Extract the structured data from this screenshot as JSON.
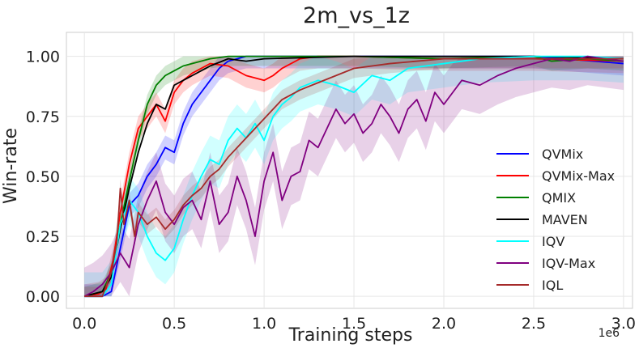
{
  "chart_data": {
    "type": "line",
    "title": "2m_vs_1z",
    "xlabel": "Training steps",
    "ylabel": "Win-rate",
    "x_offset_label": "1e6",
    "xlim": [
      -0.1,
      3.05
    ],
    "ylim": [
      -0.05,
      1.1
    ],
    "xticks": [
      0.0,
      0.5,
      1.0,
      1.5,
      2.0,
      2.5,
      3.0
    ],
    "xtick_labels": [
      "0.0",
      "0.5",
      "1.0",
      "1.5",
      "2.0",
      "2.5",
      "3.0"
    ],
    "yticks": [
      0.0,
      0.25,
      0.5,
      0.75,
      1.0
    ],
    "ytick_labels": [
      "0.00",
      "0.25",
      "0.50",
      "0.75",
      "1.00"
    ],
    "grid": true,
    "legend_position": "center-right",
    "series": [
      {
        "name": "QVMix",
        "color": "#0000ff",
        "band": 0.05,
        "x": [
          0.0,
          0.1,
          0.15,
          0.2,
          0.25,
          0.3,
          0.35,
          0.4,
          0.45,
          0.5,
          0.55,
          0.6,
          0.65,
          0.7,
          0.75,
          0.8,
          0.9,
          1.0,
          1.2,
          1.5,
          2.0,
          2.5,
          3.0
        ],
        "y": [
          0.0,
          0.0,
          0.02,
          0.2,
          0.38,
          0.42,
          0.5,
          0.55,
          0.62,
          0.6,
          0.72,
          0.8,
          0.85,
          0.9,
          0.95,
          0.98,
          1.0,
          1.0,
          1.0,
          1.0,
          1.0,
          1.0,
          0.97
        ]
      },
      {
        "name": "QVMix-Max",
        "color": "#ff0000",
        "band": 0.05,
        "x": [
          0.0,
          0.08,
          0.12,
          0.16,
          0.2,
          0.25,
          0.3,
          0.35,
          0.4,
          0.45,
          0.5,
          0.55,
          0.6,
          0.7,
          0.8,
          0.9,
          1.0,
          1.05,
          1.1,
          1.2,
          1.3,
          1.5,
          2.0,
          2.5,
          3.0
        ],
        "y": [
          0.0,
          0.01,
          0.03,
          0.15,
          0.35,
          0.55,
          0.7,
          0.75,
          0.8,
          0.73,
          0.85,
          0.9,
          0.93,
          0.97,
          0.96,
          0.92,
          0.9,
          0.92,
          0.95,
          0.99,
          1.0,
          1.0,
          0.99,
          0.99,
          0.98
        ]
      },
      {
        "name": "QMIX",
        "color": "#008000",
        "band": 0.04,
        "x": [
          0.0,
          0.1,
          0.15,
          0.2,
          0.25,
          0.3,
          0.35,
          0.4,
          0.45,
          0.5,
          0.55,
          0.6,
          0.7,
          0.8,
          1.0,
          1.5,
          2.0,
          2.5,
          2.6,
          2.8,
          3.0
        ],
        "y": [
          0.0,
          0.02,
          0.1,
          0.3,
          0.48,
          0.65,
          0.8,
          0.88,
          0.92,
          0.94,
          0.96,
          0.97,
          0.99,
          1.0,
          1.0,
          1.0,
          0.99,
          1.0,
          0.98,
          0.99,
          0.98
        ]
      },
      {
        "name": "MAVEN",
        "color": "#000000",
        "band": 0.0,
        "x": [
          0.0,
          0.1,
          0.15,
          0.2,
          0.25,
          0.3,
          0.35,
          0.4,
          0.45,
          0.5,
          0.55,
          0.6,
          0.7,
          0.8,
          0.9,
          1.0,
          1.5,
          2.0,
          2.5,
          3.0
        ],
        "y": [
          0.0,
          0.02,
          0.08,
          0.28,
          0.45,
          0.6,
          0.72,
          0.8,
          0.78,
          0.88,
          0.9,
          0.92,
          0.96,
          0.99,
          0.98,
          0.99,
          1.0,
          1.0,
          1.0,
          0.99
        ]
      },
      {
        "name": "IQV",
        "color": "#00ffff",
        "band": 0.1,
        "x": [
          0.0,
          0.1,
          0.15,
          0.2,
          0.25,
          0.3,
          0.35,
          0.4,
          0.45,
          0.5,
          0.55,
          0.6,
          0.65,
          0.7,
          0.75,
          0.8,
          0.85,
          0.9,
          0.95,
          1.0,
          1.05,
          1.1,
          1.15,
          1.2,
          1.3,
          1.4,
          1.5,
          1.6,
          1.7,
          1.8,
          2.0,
          2.2,
          2.5,
          2.8,
          3.0
        ],
        "y": [
          0.0,
          0.0,
          0.05,
          0.3,
          0.4,
          0.35,
          0.25,
          0.18,
          0.15,
          0.2,
          0.32,
          0.42,
          0.5,
          0.57,
          0.55,
          0.65,
          0.7,
          0.66,
          0.72,
          0.65,
          0.75,
          0.8,
          0.83,
          0.87,
          0.9,
          0.88,
          0.85,
          0.92,
          0.9,
          0.95,
          0.97,
          0.99,
          1.0,
          1.0,
          0.99
        ]
      },
      {
        "name": "IQV-Max",
        "color": "#800080",
        "band": 0.12,
        "x": [
          0.0,
          0.05,
          0.1,
          0.15,
          0.2,
          0.25,
          0.3,
          0.35,
          0.4,
          0.45,
          0.5,
          0.55,
          0.6,
          0.65,
          0.7,
          0.75,
          0.8,
          0.85,
          0.9,
          0.95,
          1.0,
          1.05,
          1.1,
          1.15,
          1.2,
          1.25,
          1.3,
          1.35,
          1.4,
          1.45,
          1.5,
          1.55,
          1.6,
          1.65,
          1.7,
          1.75,
          1.8,
          1.85,
          1.9,
          1.95,
          2.0,
          2.05,
          2.1,
          2.2,
          2.3,
          2.4,
          2.5,
          2.6,
          2.7,
          2.8,
          2.9,
          3.0
        ],
        "y": [
          0.0,
          0.02,
          0.05,
          0.1,
          0.18,
          0.12,
          0.3,
          0.4,
          0.48,
          0.35,
          0.3,
          0.37,
          0.4,
          0.32,
          0.48,
          0.3,
          0.35,
          0.5,
          0.4,
          0.25,
          0.48,
          0.6,
          0.4,
          0.5,
          0.52,
          0.65,
          0.62,
          0.7,
          0.78,
          0.72,
          0.76,
          0.68,
          0.72,
          0.8,
          0.75,
          0.68,
          0.78,
          0.82,
          0.73,
          0.85,
          0.8,
          0.85,
          0.9,
          0.88,
          0.92,
          0.95,
          0.97,
          0.99,
          0.98,
          1.0,
          0.99,
          0.98
        ]
      },
      {
        "name": "IQL",
        "color": "#a52a2a",
        "band": 0.04,
        "x": [
          0.0,
          0.1,
          0.15,
          0.18,
          0.2,
          0.22,
          0.25,
          0.28,
          0.3,
          0.35,
          0.4,
          0.45,
          0.5,
          0.55,
          0.6,
          0.65,
          0.7,
          0.75,
          0.8,
          0.85,
          0.9,
          0.95,
          1.0,
          1.1,
          1.2,
          1.3,
          1.4,
          1.5,
          1.7,
          2.0,
          2.5,
          3.0
        ],
        "y": [
          0.0,
          0.0,
          0.1,
          0.22,
          0.45,
          0.3,
          0.4,
          0.25,
          0.35,
          0.3,
          0.33,
          0.28,
          0.32,
          0.38,
          0.42,
          0.45,
          0.5,
          0.53,
          0.58,
          0.62,
          0.66,
          0.7,
          0.74,
          0.82,
          0.86,
          0.89,
          0.92,
          0.95,
          0.97,
          0.99,
          0.99,
          0.99
        ]
      }
    ]
  }
}
